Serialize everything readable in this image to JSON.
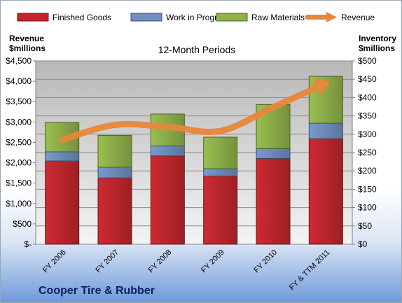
{
  "chart_data": {
    "type": "bar",
    "stacked": true,
    "subtitle": "12-Month Periods",
    "company": "Cooper Tire & Rubber",
    "left_axis_title": [
      "Revenue",
      "$millions"
    ],
    "right_axis_title": [
      "Inventory",
      "$millions"
    ],
    "categories": [
      "FY 2006",
      "FY 2007",
      "FY 2008",
      "FY 2009",
      "FY 2010",
      "FY & TTM 2011"
    ],
    "series": [
      {
        "name": "Finished Goods",
        "color": "#c0272d",
        "values": [
          227,
          181,
          241,
          186,
          234,
          288
        ]
      },
      {
        "name": "Work in Progress",
        "color": "#6f8fc0",
        "values": [
          25,
          29,
          27,
          20,
          27,
          42
        ]
      },
      {
        "name": "Raw Materials",
        "color": "#8fb14a",
        "values": [
          80,
          87,
          87,
          86,
          120,
          128
        ]
      }
    ],
    "line_series": {
      "name": "Revenue",
      "color": "#e8863a",
      "values": [
        2560,
        2930,
        2880,
        2780,
        3360,
        3950
      ]
    },
    "left_axis": {
      "min": 0,
      "max": 4500,
      "step": 500,
      "tick_labels": [
        "$-",
        "$500",
        "$1,000",
        "$1,500",
        "$2,000",
        "$2,500",
        "$3,000",
        "$3,500",
        "$4,000",
        "$4,500"
      ]
    },
    "right_axis": {
      "min": 0,
      "max": 500,
      "step": 50,
      "tick_labels": [
        "$0",
        "$50",
        "$100",
        "$150",
        "$200",
        "$250",
        "$300",
        "$350",
        "$400",
        "$450",
        "$500"
      ]
    },
    "grid": true,
    "legend_position": "top"
  }
}
